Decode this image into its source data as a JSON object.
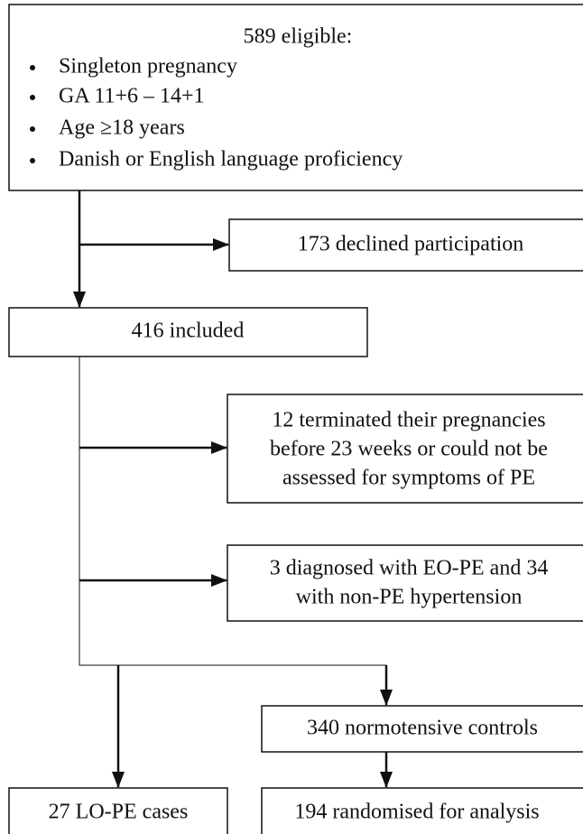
{
  "nodes": [
    {
      "title": "589 eligible:",
      "bullets": [
        "Singleton pregnancy",
        "GA 11+6 – 14+1",
        "Age ≥18 years",
        "Danish or English language proficiency"
      ]
    },
    {
      "lines": [
        "173 declined participation"
      ]
    },
    {
      "lines": [
        "416 included"
      ]
    },
    {
      "lines": [
        "12 terminated their pregnancies",
        "before 23 weeks or could not be",
        "assessed for symptoms of PE"
      ]
    },
    {
      "lines": [
        "3 diagnosed with EO-PE and 34",
        "with non-PE hypertension"
      ]
    },
    {
      "lines": [
        "340 normotensive controls"
      ]
    },
    {
      "lines": [
        "27 LO-PE cases"
      ]
    },
    {
      "lines": [
        "194 randomised for analysis"
      ]
    }
  ]
}
